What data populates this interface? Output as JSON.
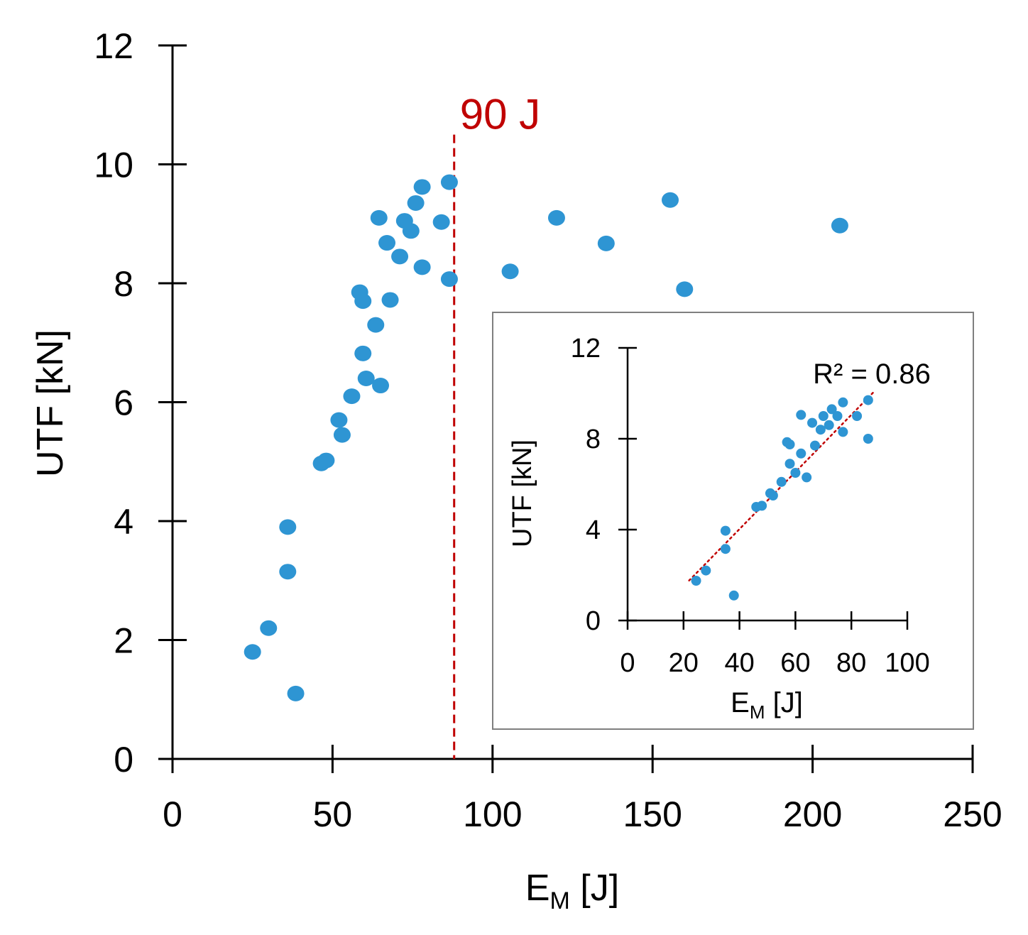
{
  "chart_data": [
    {
      "type": "scatter",
      "name": "main",
      "xlabel": "E",
      "xlabel_sub": "M",
      "xlabel_unit": " [J]",
      "ylabel": "UTF [kN]",
      "xlim": [
        0,
        250
      ],
      "ylim": [
        0,
        12
      ],
      "xticks": [
        0,
        50,
        100,
        150,
        200,
        250
      ],
      "yticks": [
        0,
        2,
        4,
        6,
        8,
        10,
        12
      ],
      "marker_color": "#2e95d3",
      "threshold": {
        "x": 88,
        "ymax": 10.5,
        "label": "90 J",
        "color": "#c00000"
      },
      "points": [
        [
          25,
          1.8
        ],
        [
          30,
          2.2
        ],
        [
          36,
          3.15
        ],
        [
          36,
          3.9
        ],
        [
          38.5,
          1.1
        ],
        [
          46.5,
          4.97
        ],
        [
          48,
          5.02
        ],
        [
          52,
          5.7
        ],
        [
          53,
          5.45
        ],
        [
          56,
          6.1
        ],
        [
          58.5,
          7.85
        ],
        [
          59.5,
          7.7
        ],
        [
          59.5,
          6.82
        ],
        [
          60.5,
          6.4
        ],
        [
          63.5,
          7.3
        ],
        [
          64.5,
          9.1
        ],
        [
          65,
          6.28
        ],
        [
          67,
          8.68
        ],
        [
          68,
          7.72
        ],
        [
          71,
          8.45
        ],
        [
          72.5,
          9.05
        ],
        [
          74.5,
          8.88
        ],
        [
          76,
          9.35
        ],
        [
          78,
          8.27
        ],
        [
          78,
          9.62
        ],
        [
          84,
          9.03
        ],
        [
          86.5,
          9.7
        ],
        [
          86.5,
          8.07
        ],
        [
          105.5,
          8.2
        ],
        [
          120,
          9.1
        ],
        [
          135.5,
          8.67
        ],
        [
          155.5,
          9.4
        ],
        [
          160,
          7.9
        ],
        [
          208.5,
          8.97
        ]
      ]
    },
    {
      "type": "scatter",
      "name": "inset",
      "xlabel": "E",
      "xlabel_sub": "M",
      "xlabel_unit": " [J]",
      "ylabel": "UTF [kN]",
      "xlim": [
        0,
        100
      ],
      "ylim": [
        0,
        12
      ],
      "xticks": [
        0,
        20,
        40,
        60,
        80,
        100
      ],
      "yticks": [
        0,
        4,
        8,
        12
      ],
      "marker_color": "#2e95d3",
      "annotation": "R² = 0.86",
      "trendline": {
        "x": [
          22,
          88
        ],
        "y": [
          1.76,
          10.06
        ],
        "color": "#c00000",
        "style": "dotted"
      },
      "points": [
        [
          24.5,
          1.75
        ],
        [
          28,
          2.2
        ],
        [
          35,
          3.15
        ],
        [
          35,
          3.95
        ],
        [
          38,
          1.1
        ],
        [
          46,
          5.0
        ],
        [
          48,
          5.05
        ],
        [
          51,
          5.6
        ],
        [
          52,
          5.5
        ],
        [
          55,
          6.1
        ],
        [
          57,
          7.85
        ],
        [
          58,
          7.75
        ],
        [
          58,
          6.9
        ],
        [
          60,
          6.5
        ],
        [
          62,
          7.35
        ],
        [
          62,
          9.05
        ],
        [
          64,
          6.3
        ],
        [
          66,
          8.7
        ],
        [
          67,
          7.7
        ],
        [
          69,
          8.4
        ],
        [
          70,
          9.0
        ],
        [
          72,
          8.6
        ],
        [
          73,
          9.3
        ],
        [
          75,
          9.0
        ],
        [
          77,
          8.3
        ],
        [
          77,
          9.6
        ],
        [
          82,
          9.0
        ],
        [
          86,
          9.7
        ],
        [
          86,
          8.0
        ]
      ]
    }
  ]
}
